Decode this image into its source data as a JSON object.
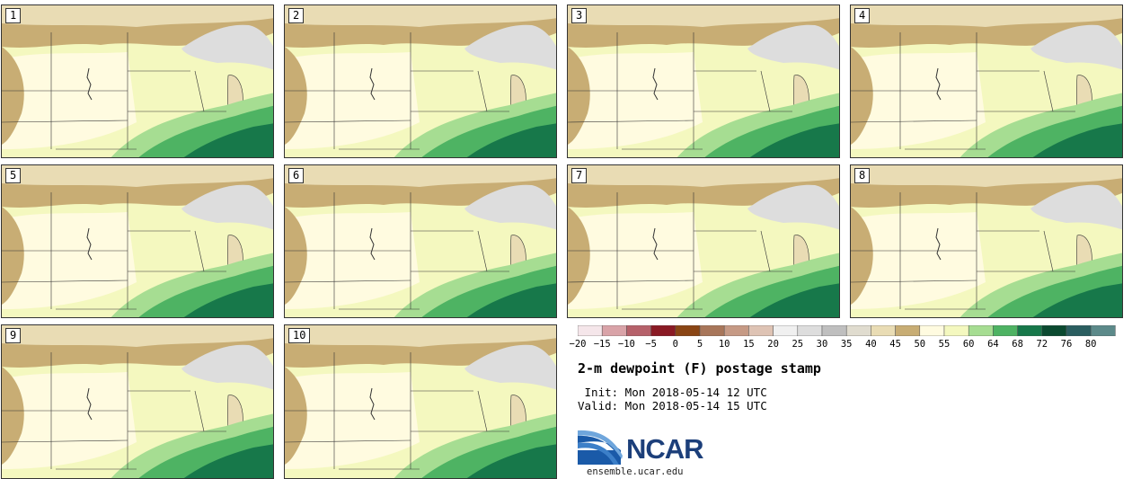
{
  "panels": [
    "1",
    "2",
    "3",
    "4",
    "5",
    "6",
    "7",
    "8",
    "9",
    "10"
  ],
  "colorbar": {
    "ticks": [
      "−20",
      "−15",
      "−10",
      "−5",
      "0",
      "5",
      "10",
      "15",
      "20",
      "25",
      "30",
      "35",
      "40",
      "45",
      "50",
      "55",
      "60",
      "64",
      "68",
      "72",
      "76",
      "80"
    ],
    "colors": [
      "#f5e6ea",
      "#d9a3a8",
      "#b6616a",
      "#8a1a24",
      "#8a4514",
      "#a8765a",
      "#c69a85",
      "#dec3b4",
      "#f0f0f0",
      "#dddddd",
      "#bfbfbf",
      "#e0dccf",
      "#e9dcb4",
      "#c8ad74",
      "#fffbe0",
      "#f4f8bf",
      "#a6dd92",
      "#4eb363",
      "#17784a",
      "#0b4a30",
      "#2a5e60",
      "#5c8a8a"
    ]
  },
  "title": "2-m dewpoint (F) postage stamp",
  "init": " Init: Mon 2018-05-14 12 UTC",
  "valid": "Valid: Mon 2018-05-14 15 UTC",
  "logo_text": "NCAR",
  "url": "ensemble.ucar.edu"
}
